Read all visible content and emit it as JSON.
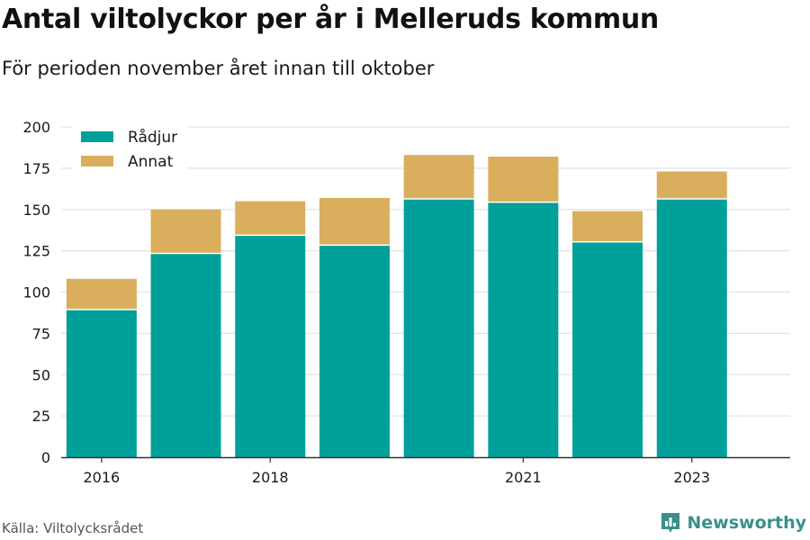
{
  "title": "Antal viltolyckor per år i Melleruds kommun",
  "subtitle": "För perioden november året innan till oktober",
  "source": "Källa: Viltolycksrådet",
  "brand": "Newsworthy",
  "colors": {
    "radjur": "#00a09a",
    "annat": "#d9ae5d",
    "grid": "#e3e3e3",
    "axis": "#333333",
    "brand": "#3b8f8a"
  },
  "chart_data": {
    "type": "bar",
    "stacked": true,
    "categories": [
      2016,
      2017,
      2018,
      2019,
      2020,
      2021,
      2022,
      2023
    ],
    "x_tick_labels": [
      "2016",
      "2018",
      "2021",
      "2023"
    ],
    "series": [
      {
        "name": "Rådjur",
        "values": [
          89,
          123,
          134,
          128,
          156,
          154,
          130,
          156
        ]
      },
      {
        "name": "Annat",
        "values": [
          19,
          27,
          21,
          29,
          27,
          28,
          19,
          17
        ]
      }
    ],
    "ylim": [
      0,
      200
    ],
    "yticks": [
      0,
      25,
      50,
      75,
      100,
      125,
      150,
      175,
      200
    ],
    "grid": true,
    "legend_position": "top-left"
  }
}
